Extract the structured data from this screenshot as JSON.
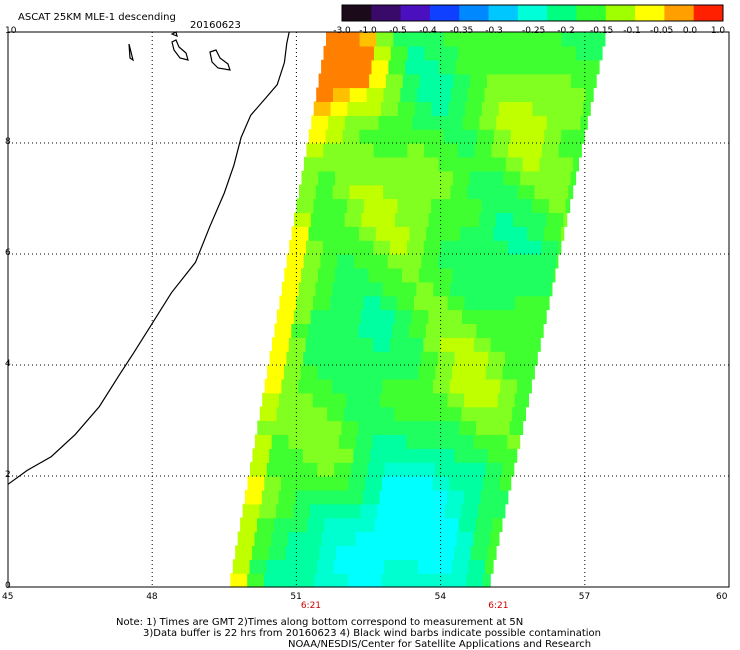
{
  "title": "ASCAT 25KM MLE-1 descending",
  "date": "20160623",
  "colorbar": {
    "labels": [
      "-3.0",
      "-1.0",
      "-0.5",
      "-0.4",
      "-0.35",
      "-0.3",
      "-0.25",
      "-0.2",
      "-0.15",
      "-0.1",
      "-0.05",
      "0.0",
      "1.0"
    ],
    "colors": [
      "#1a0a1a",
      "#3a0a6a",
      "#4a10c0",
      "#1040ff",
      "#0088ff",
      "#00c8ff",
      "#00ffd8",
      "#00ff80",
      "#30ff30",
      "#a0ff00",
      "#ffff00",
      "#ffa000",
      "#ff2000"
    ]
  },
  "axes": {
    "lon_ticks": [
      "45",
      "48",
      "51",
      "54",
      "57",
      "60"
    ],
    "lat_ticks": [
      "0",
      "2",
      "4",
      "6",
      "8",
      "10"
    ],
    "lon_range": [
      45,
      60
    ],
    "lat_range": [
      0,
      10
    ]
  },
  "time_labels": [
    {
      "text": "6:21",
      "lon": 51.3
    },
    {
      "text": "6:21",
      "lon": 55.2
    }
  ],
  "notes": [
    "Note: 1) Times are GMT 2)Times along bottom correspond to measurement at 5N",
    "3)Data buffer is 22 hrs from 20160623 4) Black wind barbs indicate possible contamination",
    "NOAA/NESDIS/Center for Satellite Applications and Research"
  ],
  "swath": {
    "corners_lonlat": [
      [
        51.6,
        9.8
      ],
      [
        57.4,
        9.8
      ],
      [
        55.0,
        0.0
      ],
      [
        49.6,
        0.0
      ]
    ]
  }
}
